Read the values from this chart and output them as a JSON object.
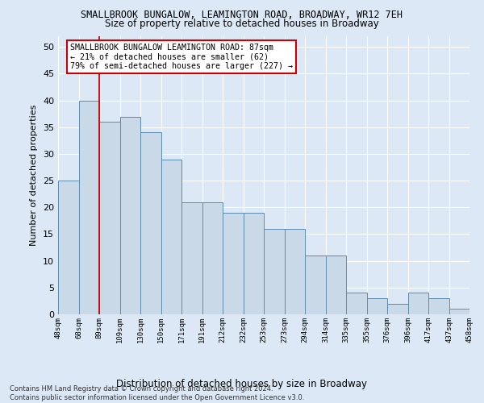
{
  "title": "SMALLBROOK BUNGALOW, LEAMINGTON ROAD, BROADWAY, WR12 7EH",
  "subtitle": "Size of property relative to detached houses in Broadway",
  "xlabel": "Distribution of detached houses by size in Broadway",
  "ylabel": "Number of detached properties",
  "heights": [
    25,
    40,
    36,
    37,
    34,
    29,
    21,
    21,
    19,
    19,
    16,
    16,
    11,
    11,
    4,
    3,
    2,
    4,
    3,
    1
  ],
  "bin_labels": [
    "48sqm",
    "68sqm",
    "89sqm",
    "109sqm",
    "130sqm",
    "150sqm",
    "171sqm",
    "191sqm",
    "212sqm",
    "232sqm",
    "253sqm",
    "273sqm",
    "294sqm",
    "314sqm",
    "335sqm",
    "355sqm",
    "376sqm",
    "396sqm",
    "417sqm",
    "437sqm",
    "458sqm"
  ],
  "bar_color": "#c9d9e8",
  "bar_edge_color": "#5c8bb0",
  "vline_x": 2,
  "vline_color": "#cc0000",
  "annotation_text": "SMALLBROOK BUNGALOW LEAMINGTON ROAD: 87sqm\n← 21% of detached houses are smaller (62)\n79% of semi-detached houses are larger (227) →",
  "annotation_box_color": "#ffffff",
  "annotation_box_edge": "#cc0000",
  "ylim": [
    0,
    52
  ],
  "yticks": [
    0,
    5,
    10,
    15,
    20,
    25,
    30,
    35,
    40,
    45,
    50
  ],
  "footer": "Contains HM Land Registry data © Crown copyright and database right 2024.\nContains public sector information licensed under the Open Government Licence v3.0.",
  "bg_color": "#dce8f5",
  "grid_color": "#ffffff"
}
